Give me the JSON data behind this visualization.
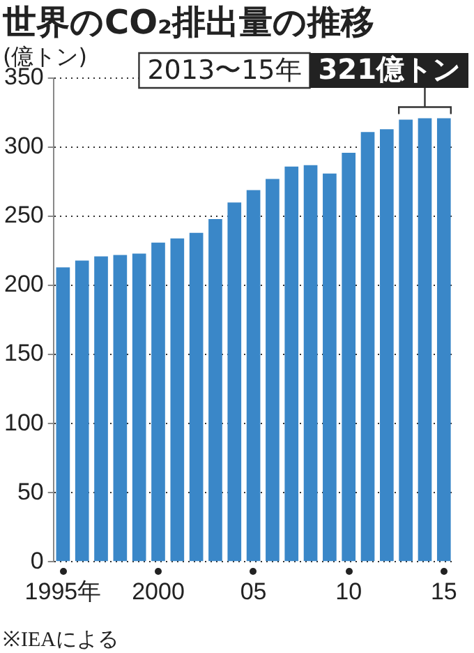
{
  "chart_data": {
    "type": "bar",
    "title": "世界のCO₂排出量の推移",
    "ylabel": "(億トン)",
    "categories": [
      "1995年",
      null,
      null,
      null,
      null,
      "2000",
      null,
      null,
      null,
      null,
      "05",
      null,
      null,
      null,
      null,
      "10",
      null,
      null,
      null,
      null,
      "15"
    ],
    "values": [
      213,
      218,
      221,
      222,
      223,
      231,
      234,
      238,
      248,
      260,
      269,
      277,
      286,
      287,
      281,
      296,
      311,
      313,
      320,
      321,
      321
    ],
    "color": "#3a87c8",
    "ylim": [
      0,
      350
    ],
    "yticks": [
      0,
      50,
      100,
      150,
      200,
      250,
      300,
      350
    ],
    "grid": "y",
    "annotations": [
      "2013〜15年",
      "321億トン",
      "※IEAによる"
    ]
  }
}
